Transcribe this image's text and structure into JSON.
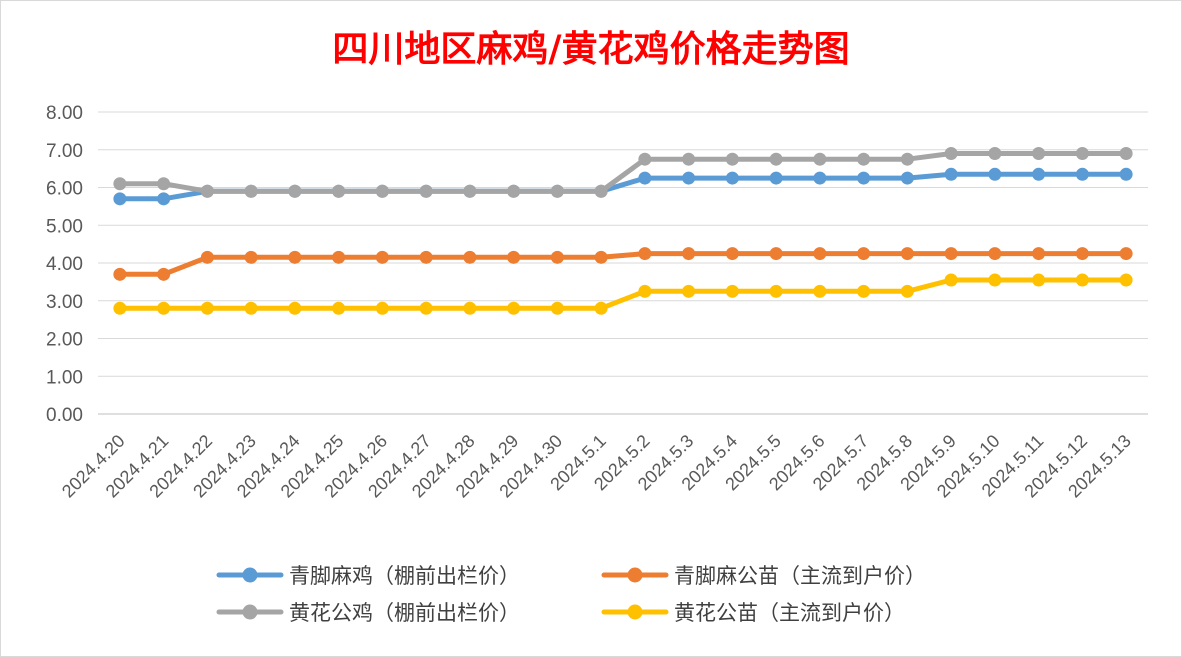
{
  "chart_data": {
    "type": "line",
    "title": "四川地区麻鸡/黄花鸡价格走势图",
    "title_color": "#ff0000",
    "categories": [
      "2024.4.20",
      "2024.4.21",
      "2024.4.22",
      "2024.4.23",
      "2024.4.24",
      "2024.4.25",
      "2024.4.26",
      "2024.4.27",
      "2024.4.28",
      "2024.4.29",
      "2024.4.30",
      "2024.5.1",
      "2024.5.2",
      "2024.5.3",
      "2024.5.4",
      "2024.5.5",
      "2024.5.6",
      "2024.5.7",
      "2024.5.8",
      "2024.5.9",
      "2024.5.10",
      "2024.5.11",
      "2024.5.12",
      "2024.5.13"
    ],
    "ylim": [
      0,
      8
    ],
    "yticks": [
      "0.00",
      "1.00",
      "2.00",
      "3.00",
      "4.00",
      "5.00",
      "6.00",
      "7.00",
      "8.00"
    ],
    "grid": true,
    "legend_position": "bottom",
    "series": [
      {
        "name": "青脚麻鸡（棚前出栏价）",
        "color": "#5b9bd5",
        "values": [
          5.7,
          5.7,
          5.9,
          5.9,
          5.9,
          5.9,
          5.9,
          5.9,
          5.9,
          5.9,
          5.9,
          5.9,
          6.25,
          6.25,
          6.25,
          6.25,
          6.25,
          6.25,
          6.25,
          6.35,
          6.35,
          6.35,
          6.35,
          6.35
        ]
      },
      {
        "name": "青脚麻公苗（主流到户价）",
        "color": "#ed7d31",
        "values": [
          3.7,
          3.7,
          4.15,
          4.15,
          4.15,
          4.15,
          4.15,
          4.15,
          4.15,
          4.15,
          4.15,
          4.15,
          4.25,
          4.25,
          4.25,
          4.25,
          4.25,
          4.25,
          4.25,
          4.25,
          4.25,
          4.25,
          4.25,
          4.25
        ]
      },
      {
        "name": "黄花公鸡（棚前出栏价）",
        "color": "#a5a5a5",
        "values": [
          6.1,
          6.1,
          5.9,
          5.9,
          5.9,
          5.9,
          5.9,
          5.9,
          5.9,
          5.9,
          5.9,
          5.9,
          6.75,
          6.75,
          6.75,
          6.75,
          6.75,
          6.75,
          6.75,
          6.9,
          6.9,
          6.9,
          6.9,
          6.9
        ]
      },
      {
        "name": "黄花公苗（主流到户价）",
        "color": "#ffc000",
        "values": [
          2.8,
          2.8,
          2.8,
          2.8,
          2.8,
          2.8,
          2.8,
          2.8,
          2.8,
          2.8,
          2.8,
          2.8,
          3.25,
          3.25,
          3.25,
          3.25,
          3.25,
          3.25,
          3.25,
          3.55,
          3.55,
          3.55,
          3.55,
          3.55
        ]
      }
    ]
  }
}
